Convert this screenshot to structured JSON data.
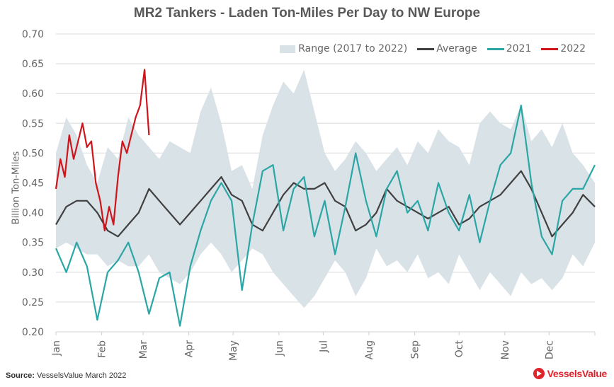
{
  "chart_data": {
    "type": "line",
    "title": "MR2 Tankers -  Laden Ton-Miles Per Day to NW Europe",
    "xlabel": "",
    "ylabel": "Billion Ton-Miles",
    "ylim": [
      0.2,
      0.7
    ],
    "yticks": [
      "0.70",
      "0.65",
      "0.60",
      "0.55",
      "0.50",
      "0.45",
      "0.40",
      "0.35",
      "0.30",
      "0.25",
      "0.20"
    ],
    "ytick_values": [
      0.7,
      0.65,
      0.6,
      0.55,
      0.5,
      0.45,
      0.4,
      0.35,
      0.3,
      0.25,
      0.2
    ],
    "xlim_days": [
      0,
      365
    ],
    "xticks": [
      "Jan",
      "Feb",
      "Mar",
      "Apr",
      "May",
      "Jun",
      "Jul",
      "Aug",
      "Sep",
      "Oct",
      "Nov",
      "Dec"
    ],
    "xtick_days": [
      0,
      31,
      59,
      90,
      120,
      151,
      181,
      212,
      243,
      273,
      304,
      334
    ],
    "grid": true,
    "legend_position": "top-right",
    "legend": [
      "Range (2017 to 2022)",
      "Average",
      "2021",
      "2022"
    ],
    "series": [
      {
        "name": "Range (2017 to 2022)",
        "kind": "band",
        "color": "#d9e2e6",
        "x": [
          0,
          7,
          14,
          21,
          28,
          35,
          42,
          49,
          56,
          63,
          70,
          77,
          84,
          91,
          98,
          105,
          112,
          119,
          126,
          133,
          140,
          147,
          154,
          161,
          168,
          175,
          182,
          189,
          196,
          203,
          210,
          217,
          224,
          231,
          238,
          245,
          252,
          259,
          266,
          273,
          280,
          287,
          294,
          301,
          308,
          315,
          322,
          329,
          336,
          343,
          350,
          357,
          365
        ],
        "low": [
          0.34,
          0.35,
          0.34,
          0.33,
          0.33,
          0.31,
          0.32,
          0.31,
          0.31,
          0.33,
          0.3,
          0.29,
          0.28,
          0.3,
          0.33,
          0.35,
          0.33,
          0.3,
          0.32,
          0.34,
          0.33,
          0.3,
          0.28,
          0.26,
          0.24,
          0.26,
          0.29,
          0.32,
          0.3,
          0.26,
          0.29,
          0.34,
          0.31,
          0.32,
          0.3,
          0.33,
          0.29,
          0.3,
          0.28,
          0.33,
          0.3,
          0.27,
          0.3,
          0.28,
          0.26,
          0.3,
          0.28,
          0.29,
          0.27,
          0.29,
          0.33,
          0.31,
          0.35
        ],
        "high": [
          0.5,
          0.56,
          0.53,
          0.48,
          0.45,
          0.51,
          0.49,
          0.56,
          0.53,
          0.51,
          0.49,
          0.52,
          0.51,
          0.5,
          0.57,
          0.61,
          0.55,
          0.47,
          0.48,
          0.44,
          0.53,
          0.58,
          0.62,
          0.6,
          0.64,
          0.57,
          0.5,
          0.47,
          0.49,
          0.52,
          0.5,
          0.47,
          0.49,
          0.51,
          0.48,
          0.52,
          0.5,
          0.54,
          0.52,
          0.51,
          0.48,
          0.55,
          0.57,
          0.55,
          0.54,
          0.58,
          0.52,
          0.54,
          0.51,
          0.55,
          0.5,
          0.48,
          0.45
        ]
      },
      {
        "name": "Average",
        "kind": "line",
        "color": "#404040",
        "x": [
          0,
          7,
          14,
          21,
          28,
          35,
          42,
          49,
          56,
          63,
          70,
          77,
          84,
          91,
          98,
          105,
          112,
          119,
          126,
          133,
          140,
          147,
          154,
          161,
          168,
          175,
          182,
          189,
          196,
          203,
          210,
          217,
          224,
          231,
          238,
          245,
          252,
          259,
          266,
          273,
          280,
          287,
          294,
          301,
          308,
          315,
          322,
          329,
          336,
          343,
          350,
          357,
          365
        ],
        "values": [
          0.38,
          0.41,
          0.42,
          0.42,
          0.4,
          0.37,
          0.36,
          0.38,
          0.4,
          0.44,
          0.42,
          0.4,
          0.38,
          0.4,
          0.42,
          0.44,
          0.46,
          0.43,
          0.42,
          0.38,
          0.37,
          0.4,
          0.43,
          0.45,
          0.44,
          0.44,
          0.45,
          0.42,
          0.41,
          0.37,
          0.38,
          0.4,
          0.44,
          0.42,
          0.41,
          0.4,
          0.39,
          0.4,
          0.41,
          0.38,
          0.39,
          0.41,
          0.42,
          0.43,
          0.45,
          0.47,
          0.44,
          0.4,
          0.36,
          0.38,
          0.4,
          0.43,
          0.41
        ]
      },
      {
        "name": "2021",
        "kind": "line",
        "color": "#2aa6a6",
        "x": [
          0,
          7,
          14,
          21,
          28,
          35,
          42,
          49,
          56,
          63,
          70,
          77,
          84,
          91,
          98,
          105,
          112,
          119,
          126,
          133,
          140,
          147,
          154,
          161,
          168,
          175,
          182,
          189,
          196,
          203,
          210,
          217,
          224,
          231,
          238,
          245,
          252,
          259,
          266,
          273,
          280,
          287,
          294,
          301,
          308,
          315,
          322,
          329,
          336,
          343,
          350,
          357,
          365
        ],
        "values": [
          0.34,
          0.3,
          0.35,
          0.31,
          0.22,
          0.3,
          0.32,
          0.35,
          0.3,
          0.23,
          0.29,
          0.3,
          0.21,
          0.31,
          0.37,
          0.42,
          0.45,
          0.42,
          0.27,
          0.38,
          0.47,
          0.48,
          0.37,
          0.44,
          0.46,
          0.36,
          0.42,
          0.33,
          0.41,
          0.5,
          0.42,
          0.36,
          0.44,
          0.47,
          0.4,
          0.42,
          0.37,
          0.45,
          0.4,
          0.37,
          0.43,
          0.35,
          0.42,
          0.48,
          0.5,
          0.58,
          0.45,
          0.36,
          0.33,
          0.42,
          0.44,
          0.44,
          0.48
        ]
      },
      {
        "name": "2022",
        "kind": "line",
        "color": "#d0141c",
        "x": [
          0,
          3,
          6,
          9,
          12,
          15,
          18,
          21,
          24,
          27,
          30,
          33,
          36,
          39,
          42,
          45,
          48,
          51,
          54,
          57,
          60,
          63
        ],
        "values": [
          0.44,
          0.49,
          0.46,
          0.53,
          0.49,
          0.52,
          0.55,
          0.51,
          0.52,
          0.45,
          0.42,
          0.37,
          0.41,
          0.38,
          0.46,
          0.52,
          0.5,
          0.53,
          0.56,
          0.58,
          0.64,
          0.53
        ]
      }
    ]
  },
  "source": {
    "label": "Source:",
    "text": "VesselsValue March 2022"
  },
  "logo": {
    "text": "VesselsValue",
    "color": "#e0222a"
  }
}
